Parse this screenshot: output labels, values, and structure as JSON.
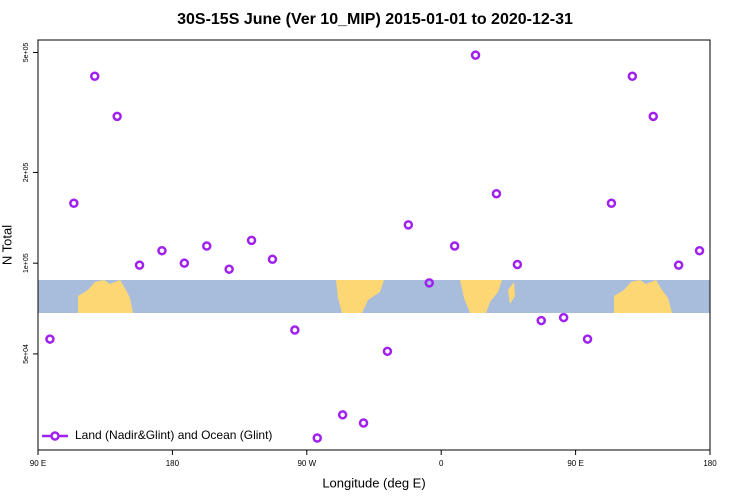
{
  "chart_data": {
    "type": "scatter",
    "title": "30S-15S June (Ver 10_MIP)   2015-01-01 to 2020-12-31",
    "x_label": "Longitude (deg E)",
    "y_label": "N Total",
    "y_log": true,
    "legend_position": "lower left",
    "xlim": [
      90,
      540
    ],
    "xticks": [
      {
        "value": 90,
        "label": "90 E"
      },
      {
        "value": 180,
        "label": "180"
      },
      {
        "value": 270,
        "label": "90 W"
      },
      {
        "value": 360,
        "label": "0"
      },
      {
        "value": 450,
        "label": "90 E"
      },
      {
        "value": 540,
        "label": "180"
      }
    ],
    "ylim": [
      24000,
      550000
    ],
    "yticks": [
      {
        "value": 50000,
        "label": "5e+04"
      },
      {
        "value": 100000,
        "label": "1e+05"
      },
      {
        "value": 200000,
        "label": "2e+05"
      },
      {
        "value": 500000,
        "label": "5e+05"
      }
    ],
    "series": [
      {
        "name": "Land (Nadir&Glint) and Ocean (Glint)",
        "color": "#a020f0",
        "x": [
          98,
          114,
          128,
          143,
          158,
          173,
          188,
          203,
          218,
          233,
          247,
          262,
          277,
          294,
          308,
          324,
          338,
          352,
          369,
          383,
          397,
          411,
          427,
          442,
          458,
          474,
          488,
          502,
          519,
          533
        ],
        "values": [
          56000,
          158000,
          417000,
          307000,
          98500,
          110000,
          100000,
          114000,
          95500,
          119000,
          103000,
          60000,
          26300,
          31400,
          29500,
          51000,
          134000,
          86000,
          114000,
          490000,
          170000,
          99000,
          64500,
          66000,
          56000,
          158000,
          417000,
          307000,
          98500,
          110000
        ]
      }
    ]
  }
}
